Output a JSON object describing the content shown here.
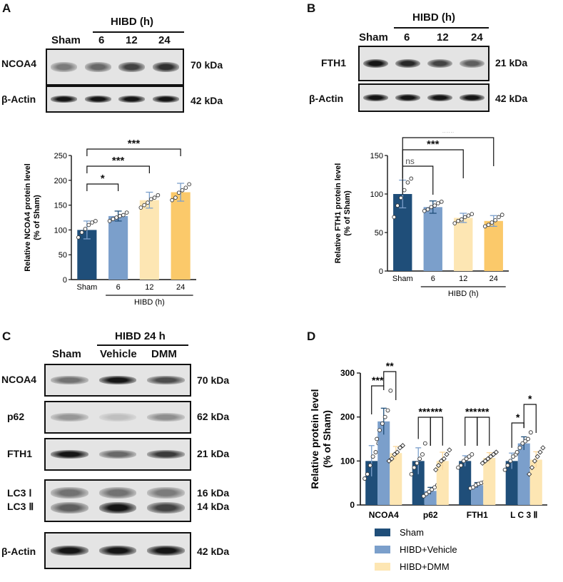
{
  "panels": {
    "A": {
      "letter": "A",
      "group_label": "HIBD (h)",
      "lanes": [
        "Sham",
        "6",
        "12",
        "24"
      ],
      "rows": [
        {
          "protein": "NCOA4",
          "kda": "70 kDa",
          "intensity": [
            0.45,
            0.55,
            0.75,
            0.85
          ]
        },
        {
          "protein": "β-Actin",
          "kda": "42 kDa",
          "intensity": [
            1,
            1,
            1,
            1
          ]
        }
      ]
    },
    "B": {
      "letter": "B",
      "group_label": "HIBD (h)",
      "lanes": [
        "Sham",
        "6",
        "12",
        "24"
      ],
      "rows": [
        {
          "protein": "FTH1",
          "kda": "21 kDa",
          "intensity": [
            1,
            0.9,
            0.75,
            0.6
          ]
        },
        {
          "protein": "β-Actin",
          "kda": "42 kDa",
          "intensity": [
            1,
            1,
            1,
            1
          ]
        }
      ]
    },
    "C": {
      "letter": "C",
      "group_label": "HIBD 24 h",
      "lanes": [
        "Sham",
        "Vehicle",
        "DMM"
      ],
      "rows": [
        {
          "protein": "NCOA4",
          "kda": "70 kDa",
          "intensity": [
            0.5,
            1,
            0.7
          ]
        },
        {
          "protein": "p62",
          "kda": "62 kDa",
          "intensity": [
            0.3,
            0.08,
            0.35
          ]
        },
        {
          "protein": "FTH1",
          "kda": "21 kDa",
          "intensity": [
            1,
            0.55,
            0.8
          ]
        },
        {
          "protein": "LC3 Ⅰ",
          "protein2": "LC3 Ⅱ",
          "kda": "16 kDa",
          "kda2": "14 kDa",
          "intensity": [
            0.5,
            0.5,
            0.45
          ],
          "intensity2": [
            0.6,
            1,
            0.75
          ]
        },
        {
          "protein": "β-Actin",
          "kda": "42 kDa",
          "intensity": [
            1,
            1,
            1
          ]
        }
      ]
    },
    "D": {
      "letter": "D"
    }
  },
  "colors": {
    "sham": "#1f4e79",
    "vehicle": "#7b9fcb",
    "h6": "#7b9fcb",
    "h12": "#fde6b3",
    "h24": "#fbc96a",
    "dmm": "#fde6b3"
  },
  "chart_data": [
    {
      "type": "bar",
      "panel": "A",
      "ylabel": "Relative NCOA4 protein level\n(% of Sham)",
      "categories": [
        "Sham",
        "6",
        "12",
        "24"
      ],
      "values": [
        100,
        128,
        160,
        176
      ],
      "errors": [
        18,
        10,
        16,
        18
      ],
      "points": [
        [
          85,
          95,
          102,
          110,
          115,
          118
        ],
        [
          118,
          122,
          125,
          128,
          130,
          135
        ],
        [
          145,
          150,
          155,
          162,
          165,
          170
        ],
        [
          160,
          165,
          175,
          180,
          185,
          192
        ]
      ],
      "ylim": [
        0,
        250
      ],
      "yticks": [
        0,
        50,
        100,
        150,
        200,
        250
      ],
      "group_label": "HIBD (h)",
      "significance": [
        {
          "from": 0,
          "to": 1,
          "label": "*"
        },
        {
          "from": 0,
          "to": 2,
          "label": "***"
        },
        {
          "from": 0,
          "to": 3,
          "label": "***"
        }
      ]
    },
    {
      "type": "bar",
      "panel": "B",
      "ylabel": "Relative FTH1 protein level\n(% of Sham)",
      "categories": [
        "Sham",
        "6",
        "12",
        "24"
      ],
      "values": [
        100,
        83,
        69,
        65
      ],
      "errors": [
        18,
        8,
        6,
        7
      ],
      "points": [
        [
          70,
          85,
          95,
          105,
          115,
          120
        ],
        [
          78,
          80,
          83,
          85,
          88,
          90
        ],
        [
          62,
          65,
          67,
          70,
          72,
          74
        ],
        [
          58,
          60,
          63,
          66,
          70,
          73
        ]
      ],
      "ylim": [
        0,
        150
      ],
      "yticks": [
        0,
        50,
        100,
        150
      ],
      "group_label": "HIBD (h)",
      "significance": [
        {
          "from": 0,
          "to": 1,
          "label": "ns"
        },
        {
          "from": 0,
          "to": 2,
          "label": "***"
        },
        {
          "from": 0,
          "to": 3,
          "label": "***"
        }
      ]
    },
    {
      "type": "bar",
      "panel": "D",
      "ylabel": "Relative protein level\n(% of Sham)",
      "categories": [
        "NCOA4",
        "p62",
        "FTH1",
        "L C 3 Ⅱ"
      ],
      "series": [
        {
          "name": "Sham",
          "values": [
            100,
            100,
            100,
            100
          ],
          "errors": [
            35,
            30,
            12,
            18
          ],
          "points": [
            [
              60,
              70,
              90,
              110,
              120,
              140
            ],
            [
              70,
              85,
              95,
              105,
              115,
              140
            ],
            [
              85,
              90,
              100,
              105,
              110,
              115
            ],
            [
              80,
              90,
              100,
              110,
              115,
              120
            ]
          ]
        },
        {
          "name": "HIBD+Vehicle",
          "values": [
            190,
            32,
            45,
            140
          ],
          "errors": [
            30,
            8,
            6,
            15
          ],
          "points": [
            [
              150,
              170,
              185,
              200,
              215,
              260
            ],
            [
              20,
              25,
              30,
              35,
              40,
              45
            ],
            [
              38,
              40,
              45,
              48,
              50,
              52
            ],
            [
              120,
              130,
              140,
              145,
              150,
              165
            ]
          ]
        },
        {
          "name": "HIBD+DMM",
          "values": [
            118,
            100,
            107,
            103
          ],
          "errors": [
            15,
            20,
            12,
            18
          ],
          "points": [
            [
              100,
              105,
              115,
              120,
              130,
              135
            ],
            [
              80,
              90,
              100,
              105,
              115,
              125
            ],
            [
              95,
              100,
              105,
              110,
              115,
              120
            ],
            [
              70,
              85,
              100,
              110,
              120,
              130
            ]
          ]
        }
      ],
      "ylim": [
        0,
        300
      ],
      "yticks": [
        0,
        100,
        200,
        300
      ],
      "legend": "bottom",
      "significance": [
        {
          "group": 0,
          "from": 0,
          "to": 1,
          "label": "***"
        },
        {
          "group": 0,
          "from": 1,
          "to": 2,
          "label": "**"
        },
        {
          "group": 1,
          "from": 0,
          "to": 1,
          "label": "***"
        },
        {
          "group": 1,
          "from": 1,
          "to": 2,
          "label": "***"
        },
        {
          "group": 2,
          "from": 0,
          "to": 1,
          "label": "***"
        },
        {
          "group": 2,
          "from": 1,
          "to": 2,
          "label": "***"
        },
        {
          "group": 3,
          "from": 0,
          "to": 1,
          "label": "*"
        },
        {
          "group": 3,
          "from": 1,
          "to": 2,
          "label": "*"
        }
      ]
    }
  ]
}
